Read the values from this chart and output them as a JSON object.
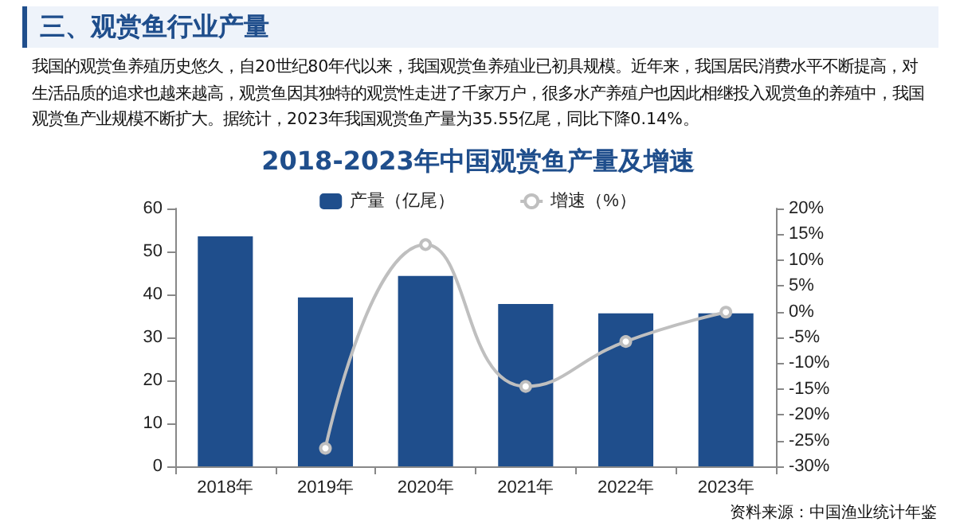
{
  "chart_data": {
    "type": "bar",
    "subtitle": "三、观赏鱼行业产量",
    "annotations": [
      "我国的观赏鱼养殖历史悠久，自20世纪80年代以来，我国观赏鱼养殖业已初具规模。近年来，我国居民消费水平不断提高，对生活品质的追求也越来越高，观赏鱼因其独特的观赏性走进了千家万户，很多水产养殖户也因此相继投入观赏鱼的养殖中，我国观赏鱼产业规模不断扩大。据统计，2023年我国观赏鱼产量为35.55亿尾，同比下降0.14%。",
      "资料来源：中国渔业统计年鉴"
    ],
    "title": "2018-2023年中国观赏鱼产量及增速",
    "categories": [
      "2018年",
      "2019年",
      "2020年",
      "2021年",
      "2022年",
      "2023年"
    ],
    "series": [
      {
        "name": "产量（亿尾）",
        "color": "#1f4e8c",
        "values": [
          53.5,
          39.3,
          44.3,
          37.8,
          35.6,
          35.6
        ]
      },
      {
        "name": "增速（%）",
        "type": "line",
        "axis": "y2",
        "color": "#bfbfbf",
        "marker": "circle",
        "values": [
          null,
          -26.5,
          13.0,
          -14.5,
          -5.8,
          -0.1
        ]
      }
    ],
    "ylim": [
      0,
      60
    ],
    "yticks": [
      0,
      10,
      20,
      30,
      40,
      50,
      60
    ],
    "y2lim": [
      -30,
      20
    ],
    "y2ticks": [
      {
        "value": -30,
        "label": "-30%"
      },
      {
        "value": -25,
        "label": "-25%"
      },
      {
        "value": -20,
        "label": "-20%"
      },
      {
        "value": -15,
        "label": "-15%"
      },
      {
        "value": -10,
        "label": "-10%"
      },
      {
        "value": -5,
        "label": "-5%"
      },
      {
        "value": 0,
        "label": "0%"
      },
      {
        "value": 5,
        "label": "5%"
      },
      {
        "value": 10,
        "label": "10%"
      },
      {
        "value": 15,
        "label": "15%"
      },
      {
        "value": 20,
        "label": "20%"
      }
    ],
    "legend": "top",
    "grid": false
  }
}
